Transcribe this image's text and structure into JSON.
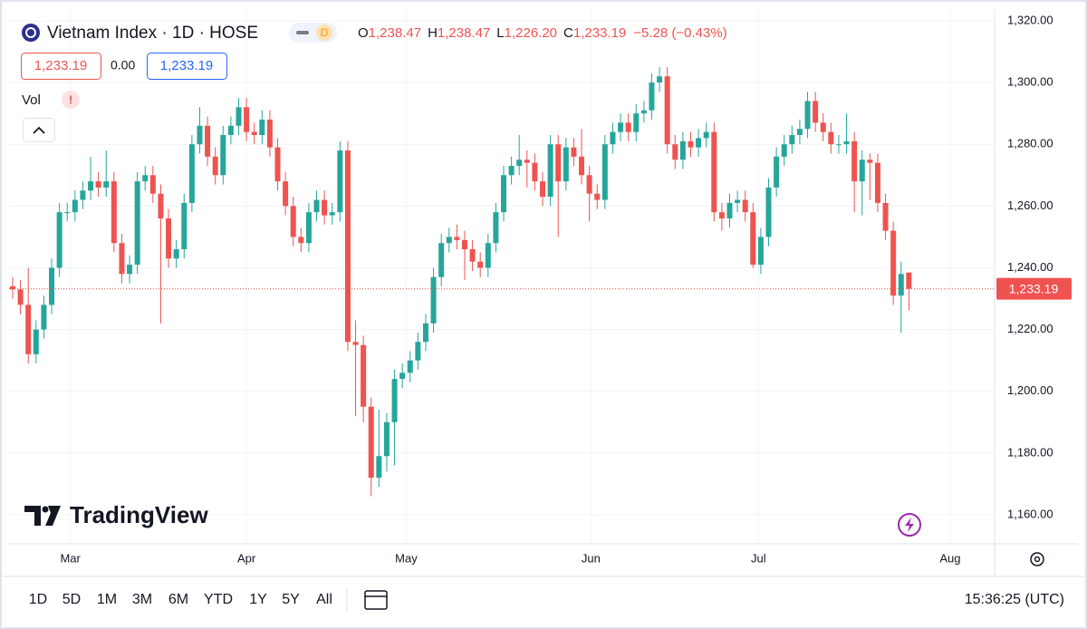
{
  "header": {
    "symbol": "Vietnam Index · 1D · HOSE",
    "badge": "D",
    "ohlc": [
      {
        "key": "O",
        "value": "1,238.47"
      },
      {
        "key": "H",
        "value": "1,238.47"
      },
      {
        "key": "L",
        "value": "1,226.20"
      },
      {
        "key": "C",
        "value": "1,233.19"
      }
    ],
    "change": "−5.28 (−0.43%)",
    "boxes": [
      "1,233.19",
      "0.00",
      "1,233.19"
    ],
    "vol": "Vol",
    "alert": "!"
  },
  "logo": "TradingView",
  "toolbar": {
    "ranges": [
      "1D",
      "5D",
      "1M",
      "3M",
      "6M",
      "YTD",
      "1Y",
      "5Y",
      "All"
    ],
    "clock": "15:36:25 (UTC)"
  },
  "chart_data": {
    "type": "candlestick",
    "up_color": "#26a69a",
    "down_color": "#ef5350",
    "grid": true,
    "open": [
      1234,
      1233,
      1228,
      1212,
      1220,
      1228,
      1240,
      1258,
      1258,
      1262,
      1265,
      1268,
      1266,
      1268,
      1248,
      1238,
      1241,
      1268,
      1270,
      1264,
      1256,
      1243,
      1246,
      1261,
      1280,
      1286,
      1276,
      1270,
      1283,
      1286,
      1292,
      1284,
      1283,
      1288,
      1279,
      1268,
      1260,
      1250,
      1248,
      1258,
      1262,
      1257,
      1258,
      1278,
      1216,
      1215,
      1195,
      1172,
      1179,
      1190,
      1204,
      1206,
      1210,
      1216,
      1222,
      1237,
      1248,
      1250,
      1249,
      1246,
      1242,
      1240,
      1248,
      1258,
      1270,
      1273,
      1275,
      1274,
      1268,
      1263,
      1280,
      1268,
      1279,
      1276,
      1270,
      1264,
      1262,
      1280,
      1284,
      1287,
      1284,
      1290,
      1291,
      1300,
      1302,
      1280,
      1275,
      1281,
      1279,
      1282,
      1284,
      1258,
      1256,
      1261,
      1262,
      1258,
      1241,
      1250,
      1266,
      1276,
      1280,
      1283,
      1285,
      1294,
      1287,
      1284,
      1280,
      1280,
      1281,
      1268,
      1275,
      1274,
      1261,
      1252,
      1231,
      1238.47
    ],
    "high": [
      1237,
      1236,
      1240,
      1223,
      1231,
      1243,
      1261,
      1261,
      1265,
      1268,
      1276,
      1271,
      1278,
      1271,
      1251,
      1244,
      1271,
      1273,
      1273,
      1267,
      1259,
      1249,
      1264,
      1283,
      1292,
      1289,
      1279,
      1286,
      1289,
      1295,
      1295,
      1287,
      1291,
      1291,
      1282,
      1271,
      1263,
      1253,
      1261,
      1265,
      1265,
      1261,
      1281,
      1281,
      1223,
      1218,
      1198,
      1194,
      1193,
      1207,
      1209,
      1213,
      1219,
      1225,
      1240,
      1251,
      1253,
      1254,
      1252,
      1249,
      1245,
      1251,
      1261,
      1273,
      1276,
      1283,
      1278,
      1277,
      1271,
      1283,
      1283,
      1282,
      1282,
      1285,
      1273,
      1267,
      1283,
      1287,
      1290,
      1290,
      1293,
      1294,
      1303,
      1305,
      1305,
      1283,
      1284,
      1284,
      1285,
      1287,
      1287,
      1261,
      1264,
      1265,
      1265,
      1261,
      1253,
      1269,
      1279,
      1283,
      1286,
      1288,
      1297,
      1297,
      1290,
      1287,
      1283,
      1290,
      1284,
      1278,
      1277,
      1277,
      1264,
      1255,
      1242,
      1238.47
    ],
    "low": [
      1230,
      1225,
      1209,
      1209,
      1217,
      1225,
      1237,
      1255,
      1255,
      1259,
      1262,
      1263,
      1263,
      1245,
      1235,
      1235,
      1238,
      1265,
      1261,
      1222,
      1240,
      1240,
      1243,
      1258,
      1277,
      1273,
      1267,
      1267,
      1280,
      1283,
      1281,
      1280,
      1280,
      1276,
      1265,
      1257,
      1247,
      1245,
      1245,
      1255,
      1254,
      1254,
      1255,
      1213,
      1192,
      1190,
      1166,
      1169,
      1174,
      1176,
      1201,
      1203,
      1207,
      1213,
      1219,
      1234,
      1245,
      1246,
      1236,
      1239,
      1237,
      1237,
      1245,
      1255,
      1267,
      1270,
      1266,
      1265,
      1260,
      1260,
      1250,
      1265,
      1273,
      1267,
      1255,
      1259,
      1259,
      1277,
      1281,
      1281,
      1281,
      1287,
      1288,
      1297,
      1277,
      1272,
      1272,
      1276,
      1276,
      1279,
      1255,
      1252,
      1253,
      1258,
      1255,
      1240,
      1238,
      1247,
      1263,
      1273,
      1277,
      1280,
      1282,
      1284,
      1281,
      1277,
      1277,
      1277,
      1258,
      1257,
      1262,
      1258,
      1249,
      1228,
      1219,
      1226.2
    ],
    "close": [
      1233,
      1228,
      1212,
      1220,
      1228,
      1240,
      1258,
      1258,
      1262,
      1265,
      1268,
      1266,
      1268,
      1248,
      1238,
      1241,
      1268,
      1270,
      1264,
      1256,
      1243,
      1246,
      1261,
      1280,
      1286,
      1276,
      1270,
      1283,
      1286,
      1292,
      1284,
      1283,
      1288,
      1279,
      1268,
      1260,
      1250,
      1248,
      1258,
      1262,
      1257,
      1258,
      1278,
      1216,
      1215,
      1195,
      1172,
      1179,
      1190,
      1204,
      1206,
      1210,
      1216,
      1222,
      1237,
      1248,
      1250,
      1249,
      1246,
      1242,
      1240,
      1248,
      1258,
      1270,
      1273,
      1275,
      1274,
      1268,
      1263,
      1280,
      1268,
      1279,
      1276,
      1270,
      1264,
      1262,
      1280,
      1284,
      1287,
      1284,
      1290,
      1291,
      1300,
      1302,
      1280,
      1275,
      1281,
      1279,
      1282,
      1284,
      1258,
      1256,
      1261,
      1262,
      1258,
      1241,
      1250,
      1266,
      1276,
      1280,
      1283,
      1285,
      1294,
      1287,
      1284,
      1280,
      1280,
      1281,
      1268,
      1275,
      1274,
      1261,
      1252,
      1231,
      1238,
      1233.19
    ],
    "last_price": {
      "value": 1233.19,
      "label": "1,233.19"
    },
    "xlim": [
      0,
      126
    ],
    "xticks": [
      {
        "value": 7.4,
        "label": "Mar"
      },
      {
        "value": 30,
        "label": "Apr"
      },
      {
        "value": 50.5,
        "label": "May"
      },
      {
        "value": 74.2,
        "label": "Jun"
      },
      {
        "value": 95.7,
        "label": "Jul"
      },
      {
        "value": 120.3,
        "label": "Aug"
      }
    ],
    "ylim": [
      1150.6,
      1323.8
    ],
    "yticks": [
      {
        "value": 1160,
        "label": "1,160.00"
      },
      {
        "value": 1180,
        "label": "1,180.00"
      },
      {
        "value": 1200,
        "label": "1,200.00"
      },
      {
        "value": 1220,
        "label": "1,220.00"
      },
      {
        "value": 1240,
        "label": "1,240.00"
      },
      {
        "value": 1260,
        "label": "1,260.00"
      },
      {
        "value": 1280,
        "label": "1,280.00"
      },
      {
        "value": 1300,
        "label": "1,300.00"
      },
      {
        "value": 1320,
        "label": "1,320.00"
      }
    ]
  }
}
